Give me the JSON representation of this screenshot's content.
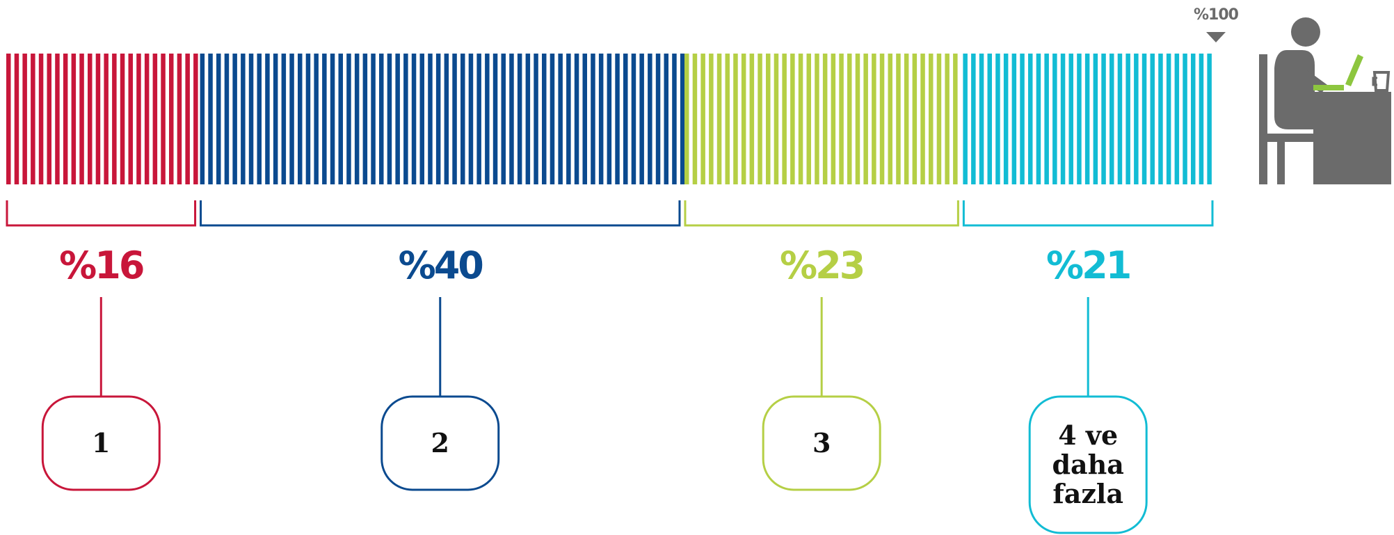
{
  "chart_data": {
    "type": "bar",
    "orientation": "stacked-horizontal-100",
    "total_label": "%100",
    "categories": [
      "1",
      "2",
      "3",
      "4 ve daha fazla"
    ],
    "values": [
      16,
      40,
      23,
      21
    ],
    "value_labels": [
      "%16",
      "%40",
      "%23",
      "%21"
    ],
    "box_lines": [
      [
        "1"
      ],
      [
        "2"
      ],
      [
        "3"
      ],
      [
        "4 ve",
        "daha",
        "fazla"
      ]
    ],
    "colors": [
      "#c8163a",
      "#0b4a8f",
      "#b5cf45",
      "#12bcd4"
    ],
    "scale_max": 100
  },
  "icons": {
    "person_at_desk": "person-at-desk-icon",
    "pointer": "down-triangle-icon"
  },
  "icon_color": "#6b6b6b",
  "laptop_color": "#8dc63f"
}
